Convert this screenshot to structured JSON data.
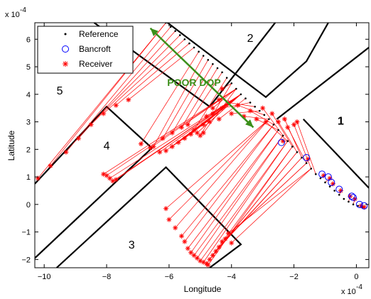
{
  "chart_data": {
    "type": "scatter",
    "xlabel": "Longitude",
    "ylabel": "Latitude",
    "x_exponent_label": "x 10",
    "x_exponent_power": "-4",
    "y_exponent_label": "x 10",
    "y_exponent_power": "-4",
    "xlim": [
      -10.3,
      0.4
    ],
    "ylim": [
      -2.3,
      6.6
    ],
    "x_ticks": [
      -10,
      -8,
      -6,
      -4,
      -2,
      0
    ],
    "x_tick_labels": [
      "−10",
      "−8",
      "−6",
      "−4",
      "−2",
      "0"
    ],
    "y_ticks": [
      -2,
      -1,
      0,
      1,
      2,
      3,
      4,
      5,
      6
    ],
    "y_tick_labels": [
      "−2",
      "−1",
      "0",
      "1",
      "2",
      "3",
      "4",
      "5",
      "6"
    ],
    "legend": {
      "placement": "top-left",
      "entries": [
        {
          "label": "Reference",
          "marker": "dot",
          "color": "#000000"
        },
        {
          "label": "Bancroft",
          "marker": "circle",
          "color": "#0000ff"
        },
        {
          "label": "Receiver",
          "marker": "asterisk",
          "color": "#ff0000"
        }
      ]
    },
    "annotations": [
      {
        "text": "POOR DOP",
        "x": -5.2,
        "y": 4.3,
        "color": "#3b8f1a"
      },
      {
        "text": "1",
        "x": -0.5,
        "y": 2.9
      },
      {
        "text": "2",
        "x": -3.4,
        "y": 5.9
      },
      {
        "text": "3",
        "x": -7.2,
        "y": -1.6
      },
      {
        "text": "4",
        "x": -8.0,
        "y": 2.0
      },
      {
        "text": "5",
        "x": -9.5,
        "y": 4.0
      }
    ],
    "dop_arrow": {
      "from": [
        -6.6,
        6.4
      ],
      "to": [
        -3.3,
        2.8
      ],
      "color": "#3b8f1a"
    },
    "buildings": [
      {
        "name": "building-5-right-edge",
        "points": [
          [
            -10.3,
            0.75
          ],
          [
            -8.0,
            3.55
          ],
          [
            -6.55,
            2.05
          ],
          [
            -10.3,
            -1.95
          ]
        ]
      },
      {
        "name": "building-2-outline",
        "points": [
          [
            -6.05,
            6.6
          ],
          [
            -2.9,
            3.9
          ],
          [
            -1.6,
            5.2
          ],
          [
            -0.9,
            6.6
          ]
        ]
      },
      {
        "name": "building-1-outline",
        "points": [
          [
            -1.7,
            3.1
          ],
          [
            0.4,
            0.6
          ]
        ]
      },
      {
        "name": "building-1-top-edge",
        "points": [
          [
            -2.55,
            3.1
          ],
          [
            0.4,
            5.7
          ]
        ]
      },
      {
        "name": "building-3-outline",
        "points": [
          [
            -9.6,
            -2.3
          ],
          [
            -6.1,
            1.35
          ],
          [
            -3.7,
            -1.45
          ],
          [
            -4.7,
            -2.3
          ]
        ]
      },
      {
        "name": "building-2-left-edge",
        "points": [
          [
            -8.4,
            6.6
          ],
          [
            -4.7,
            3.55
          ],
          [
            -2.6,
            6.6
          ]
        ]
      }
    ],
    "reference": {
      "x": [
        -6.1,
        -5.95,
        -5.8,
        -5.65,
        -5.5,
        -5.35,
        -5.2,
        -5.05,
        -4.9,
        -4.75,
        -4.6,
        -4.45,
        -4.3,
        -4.15,
        -4.0,
        -3.85,
        -3.7,
        -3.55,
        -3.4,
        -3.25,
        -3.1,
        -2.95,
        -2.8,
        -2.65,
        -2.5,
        -2.35,
        -2.2,
        -2.05,
        -1.9,
        -1.75,
        -1.6,
        -1.45,
        -1.3,
        -1.15,
        -1.0,
        -0.85,
        -0.7,
        -0.55,
        -0.4,
        -0.25,
        -0.1,
        0.05,
        0.2
      ],
      "y": [
        6.6,
        6.45,
        6.3,
        6.15,
        6.0,
        5.85,
        5.7,
        5.55,
        5.4,
        5.25,
        5.1,
        4.95,
        4.8,
        4.6,
        4.4,
        4.2,
        4.0,
        3.85,
        3.7,
        3.55,
        3.4,
        3.25,
        3.1,
        2.9,
        2.7,
        2.5,
        2.3,
        2.1,
        1.9,
        1.7,
        1.5,
        1.3,
        1.1,
        0.95,
        0.8,
        0.65,
        0.5,
        0.35,
        0.2,
        0.1,
        0.0,
        -0.05,
        -0.1
      ]
    },
    "bancroft": {
      "x": [
        -2.4,
        -1.6,
        -1.1,
        -0.9,
        -0.8,
        -0.55,
        -0.15,
        -0.1,
        0.1,
        0.25
      ],
      "y": [
        2.25,
        1.7,
        1.1,
        1.0,
        0.8,
        0.55,
        0.3,
        0.25,
        0.0,
        -0.05
      ]
    },
    "receiver_cluster_a": {
      "x": [
        -10.2,
        -9.8,
        -9.3,
        -8.9,
        -8.5,
        -8.1,
        -7.7,
        -7.3,
        -6.9,
        -6.5,
        -6.2,
        -5.9,
        -5.6,
        -5.4,
        -5.2,
        -5.0,
        -4.9,
        -4.7,
        -4.6,
        -4.4,
        -4.3,
        -4.1,
        -4.0,
        -3.8,
        -3.6,
        -3.4,
        -3.2,
        -3.0,
        -2.9,
        -2.7,
        -2.5,
        -2.3,
        -2.2,
        -2.0,
        -1.9
      ],
      "y": [
        0.95,
        1.4,
        1.9,
        2.4,
        2.9,
        3.3,
        3.6,
        3.8,
        2.2,
        2.1,
        2.4,
        2.6,
        2.8,
        2.9,
        2.7,
        2.5,
        2.6,
        3.0,
        3.3,
        3.1,
        3.5,
        3.7,
        3.3,
        3.6,
        3.2,
        3.4,
        3.1,
        3.5,
        3.0,
        3.3,
        3.0,
        3.1,
        2.8,
        2.9,
        3.0
      ]
    },
    "receiver_cluster_b": {
      "x": [
        -7.8,
        -7.9,
        -8.0,
        -8.1,
        -7.7,
        -6.6,
        -6.3,
        -6.1,
        -5.9,
        -5.7,
        -5.5,
        -5.3,
        -5.1,
        -4.9,
        -4.8,
        -4.6,
        -4.4,
        -4.3
      ],
      "y": [
        0.85,
        0.95,
        1.05,
        1.1,
        0.9,
        2.05,
        1.9,
        1.95,
        2.1,
        2.25,
        2.4,
        2.55,
        2.6,
        2.9,
        3.2,
        3.5,
        3.8,
        4.2
      ]
    },
    "receiver_cluster_c": {
      "x": [
        -6.1,
        -6.0,
        -5.8,
        -5.6,
        -5.5,
        -5.4,
        -5.3,
        -5.2,
        -5.1,
        -5.0,
        -4.9,
        -4.8,
        -4.75,
        -4.7,
        -4.6,
        -4.5,
        -4.4,
        -4.3,
        -4.2,
        -4.1,
        -4.0
      ],
      "y": [
        -0.15,
        -0.55,
        -0.85,
        -1.15,
        -1.35,
        -1.6,
        -1.75,
        -1.85,
        -1.95,
        -2.05,
        -2.1,
        -2.15,
        -2.2,
        -2.0,
        -1.85,
        -1.7,
        -1.55,
        -1.35,
        -1.25,
        -1.05,
        -1.4
      ]
    },
    "receiver_track_1": {
      "x": [
        -2.35,
        -1.55,
        -1.05,
        -0.85,
        -0.75,
        -0.5,
        -0.2,
        -0.05,
        0.15,
        0.25
      ],
      "y": [
        2.3,
        1.65,
        1.05,
        0.95,
        0.75,
        0.5,
        0.3,
        0.2,
        -0.05,
        -0.1
      ]
    }
  }
}
